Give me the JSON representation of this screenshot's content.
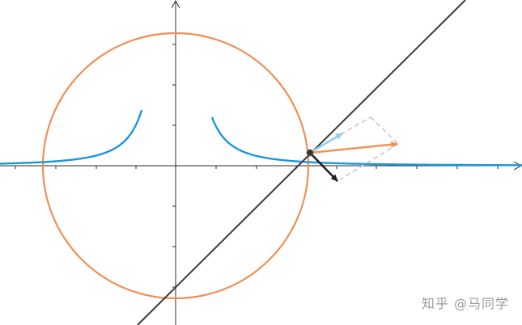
{
  "watermark": {
    "text": "知乎 @马同学"
  },
  "colors": {
    "background": "#ffffff",
    "axis": "#2b2b2b",
    "circle": "#ee8f55",
    "curve": "#1b97dd",
    "tangent_line": "#3a3a3a",
    "vector_orange": "#f2935a",
    "vector_lightblue": "#8fd0f3",
    "vector_black": "#1f1f1f",
    "dashed": "#c8c8c8",
    "point": "#333333"
  }
}
